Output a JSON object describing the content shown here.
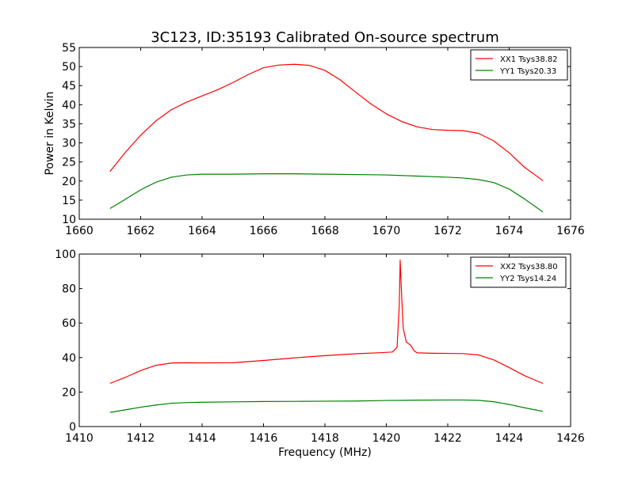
{
  "title": "3C123, ID:35193 Calibrated On-source spectrum",
  "colors": {
    "xx": "#ff0000",
    "yy": "#008000",
    "axes": "#000000",
    "background": "#ffffff"
  },
  "chart_data": [
    {
      "type": "line",
      "title": "3C123, ID:35193 Calibrated On-source spectrum",
      "xlabel": "",
      "ylabel": "Power in Kelvin",
      "xlim": [
        1660,
        1676
      ],
      "ylim": [
        10,
        55
      ],
      "xticks": [
        "1660",
        "1662",
        "1664",
        "1666",
        "1668",
        "1670",
        "1672",
        "1674",
        "1676"
      ],
      "yticks": [
        "10",
        "15",
        "20",
        "25",
        "30",
        "35",
        "40",
        "45",
        "50",
        "55"
      ],
      "grid": false,
      "legend_position": "top-right",
      "series": [
        {
          "name": "XX1 Tsys38.82",
          "color": "#ff0000",
          "x": [
            1661.0,
            1661.5,
            1662.0,
            1662.5,
            1663.0,
            1663.5,
            1664.0,
            1664.5,
            1665.0,
            1665.5,
            1666.0,
            1666.5,
            1667.0,
            1667.5,
            1668.0,
            1668.5,
            1669.0,
            1669.5,
            1670.0,
            1670.5,
            1671.0,
            1671.5,
            1672.0,
            1672.5,
            1673.0,
            1673.5,
            1674.0,
            1674.5,
            1675.1
          ],
          "y": [
            22.5,
            27.5,
            32.0,
            35.8,
            38.7,
            40.7,
            42.3,
            43.9,
            45.8,
            47.9,
            49.7,
            50.4,
            50.6,
            50.3,
            49.0,
            46.5,
            43.3,
            40.2,
            37.6,
            35.6,
            34.2,
            33.5,
            33.3,
            33.2,
            32.5,
            30.5,
            27.4,
            23.6,
            20.1
          ]
        },
        {
          "name": "YY1 Tsys20.33",
          "color": "#008000",
          "x": [
            1661.0,
            1661.5,
            1662.0,
            1662.5,
            1663.0,
            1663.5,
            1664.0,
            1665.0,
            1666.0,
            1667.0,
            1668.0,
            1669.0,
            1670.0,
            1671.0,
            1672.0,
            1672.5,
            1673.0,
            1673.5,
            1674.0,
            1674.5,
            1675.1
          ],
          "y": [
            12.8,
            15.2,
            17.7,
            19.7,
            21.0,
            21.6,
            21.8,
            21.8,
            21.9,
            21.9,
            21.8,
            21.7,
            21.6,
            21.3,
            21.0,
            20.8,
            20.4,
            19.6,
            17.9,
            15.3,
            11.9
          ]
        }
      ]
    },
    {
      "type": "line",
      "title": "",
      "xlabel": "Frequency (MHz)",
      "ylabel": "",
      "xlim": [
        1410,
        1426
      ],
      "ylim": [
        0,
        100
      ],
      "xticks": [
        "1410",
        "1412",
        "1414",
        "1416",
        "1418",
        "1420",
        "1422",
        "1424",
        "1426"
      ],
      "yticks": [
        "0",
        "20",
        "40",
        "60",
        "80",
        "100"
      ],
      "grid": false,
      "legend_position": "top-right",
      "series": [
        {
          "name": "XX2 Tsys38.80",
          "color": "#ff0000",
          "x": [
            1411.0,
            1411.5,
            1412.0,
            1412.5,
            1413.0,
            1413.5,
            1414.0,
            1415.0,
            1416.0,
            1417.0,
            1418.0,
            1419.0,
            1419.8,
            1420.2,
            1420.35,
            1420.42,
            1420.45,
            1420.5,
            1420.55,
            1420.65,
            1420.8,
            1420.9,
            1421.0,
            1421.5,
            1422.0,
            1422.5,
            1423.0,
            1423.5,
            1424.0,
            1424.5,
            1425.1
          ],
          "y": [
            25.0,
            28.5,
            32.5,
            35.5,
            36.8,
            37.0,
            36.9,
            37.0,
            38.3,
            39.8,
            41.1,
            42.2,
            42.8,
            43.2,
            46.0,
            70.0,
            96.5,
            75.0,
            57.0,
            49.0,
            47.0,
            44.0,
            42.7,
            42.5,
            42.4,
            42.3,
            41.5,
            38.6,
            34.2,
            29.5,
            25.0
          ]
        },
        {
          "name": "YY2 Tsys14.24",
          "color": "#008000",
          "x": [
            1411.0,
            1411.5,
            1412.0,
            1412.5,
            1413.0,
            1413.5,
            1414.0,
            1415.0,
            1416.0,
            1417.0,
            1418.0,
            1419.0,
            1420.0,
            1421.0,
            1422.0,
            1422.5,
            1423.0,
            1423.5,
            1424.0,
            1424.5,
            1425.1
          ],
          "y": [
            8.2,
            9.7,
            11.2,
            12.5,
            13.5,
            13.9,
            14.1,
            14.3,
            14.5,
            14.6,
            14.7,
            14.8,
            15.1,
            15.3,
            15.4,
            15.4,
            15.2,
            14.4,
            12.8,
            10.9,
            8.8
          ]
        }
      ]
    }
  ]
}
